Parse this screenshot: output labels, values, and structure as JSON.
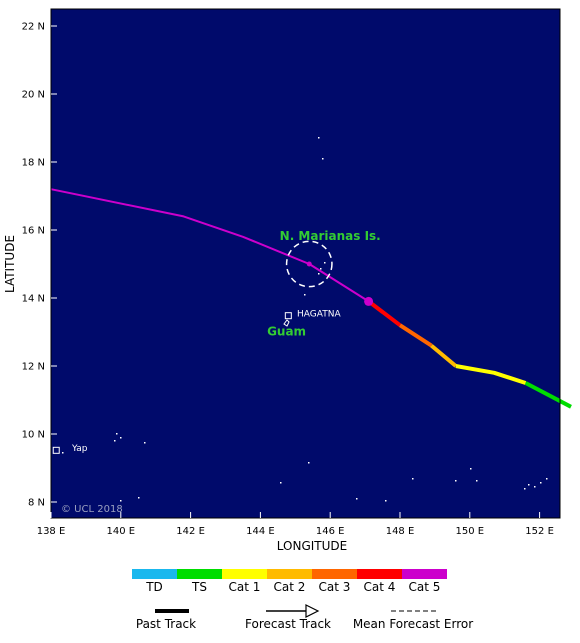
{
  "map": {
    "ocean_color": "#000a6b",
    "land_color": "#ffffff",
    "label_color": "#33cc33",
    "copyright": "© UCL 2018",
    "x_axis_title": "LONGITUDE",
    "y_axis_title": "LATITUDE",
    "lon_ticks": [
      {
        "value": 138,
        "label": "138 E"
      },
      {
        "value": 140,
        "label": "140 E"
      },
      {
        "value": 142,
        "label": "142 E"
      },
      {
        "value": 144,
        "label": "144 E"
      },
      {
        "value": 146,
        "label": "146 E"
      },
      {
        "value": 148,
        "label": "148 E"
      },
      {
        "value": 150,
        "label": "150 E"
      },
      {
        "value": 152,
        "label": "152 E"
      }
    ],
    "lat_ticks": [
      {
        "value": 22,
        "label": "22 N"
      },
      {
        "value": 20,
        "label": "20 N"
      },
      {
        "value": 18,
        "label": "18 N"
      },
      {
        "value": 16,
        "label": "16 N"
      },
      {
        "value": 14,
        "label": "14 N"
      },
      {
        "value": 12,
        "label": "12 N"
      },
      {
        "value": 10,
        "label": "10 N"
      },
      {
        "value": 8,
        "label": "8 N"
      }
    ],
    "region_labels": [
      {
        "text": "N. Marianas Is.",
        "lon": 146.0,
        "lat": 15.7,
        "color": "#33cc33"
      },
      {
        "text": "Guam",
        "lon": 144.75,
        "lat": 12.9,
        "color": "#33cc33"
      },
      {
        "text": "HAGATNA",
        "lon": 145.05,
        "lat": 13.45,
        "color": "#ffffff"
      },
      {
        "text": "Yap",
        "lon": 138.6,
        "lat": 9.5,
        "color": "#ffffff"
      }
    ],
    "city_markers": [
      {
        "name": "HAGATNA",
        "lon": 144.8,
        "lat": 13.48
      },
      {
        "name": "Yap",
        "lon": 138.15,
        "lat": 9.52
      }
    ],
    "track_segments": [
      {
        "category": "Cat 5",
        "color": "#cc00cc",
        "points": [
          [
            138.0,
            17.2
          ],
          [
            141.8,
            16.4
          ],
          [
            143.5,
            15.8
          ],
          [
            145.4,
            15.0
          ],
          [
            147.1,
            13.9
          ]
        ]
      },
      {
        "category": "Cat 4",
        "color": "#ff0000",
        "points": [
          [
            147.1,
            13.9
          ],
          [
            148.0,
            13.2
          ]
        ]
      },
      {
        "category": "Cat 3",
        "color": "#ff6600",
        "points": [
          [
            148.0,
            13.2
          ],
          [
            148.9,
            12.6
          ]
        ]
      },
      {
        "category": "Cat 2",
        "color": "#ffbb00",
        "points": [
          [
            148.9,
            12.6
          ],
          [
            149.6,
            12.0
          ]
        ]
      },
      {
        "category": "Cat 1",
        "color": "#ffff00",
        "points": [
          [
            149.6,
            12.0
          ],
          [
            150.7,
            11.8
          ],
          [
            151.6,
            11.5
          ]
        ]
      },
      {
        "category": "TS",
        "color": "#00dd00",
        "points": [
          [
            151.6,
            11.5
          ],
          [
            152.9,
            10.8
          ]
        ]
      }
    ],
    "track_points": [
      {
        "lon": 145.4,
        "lat": 15.0,
        "color": "#cc00cc",
        "size": "small"
      },
      {
        "lon": 147.1,
        "lat": 13.9,
        "color": "#cc00cc",
        "size": "large"
      }
    ],
    "error_circle": {
      "lon": 145.4,
      "lat": 15.0,
      "radius_deg": 0.65
    }
  },
  "legend": {
    "categories": [
      {
        "label": "TD",
        "color": "#1ab8ee"
      },
      {
        "label": "TS",
        "color": "#00dd00"
      },
      {
        "label": "Cat 1",
        "color": "#ffff00"
      },
      {
        "label": "Cat 2",
        "color": "#ffbb00"
      },
      {
        "label": "Cat 3",
        "color": "#ff6600"
      },
      {
        "label": "Cat 4",
        "color": "#ff0000"
      },
      {
        "label": "Cat 5",
        "color": "#cc00cc"
      }
    ],
    "past_track_label": "Past Track",
    "forecast_track_label": "Forecast Track",
    "error_label": "Mean Forecast Error"
  }
}
